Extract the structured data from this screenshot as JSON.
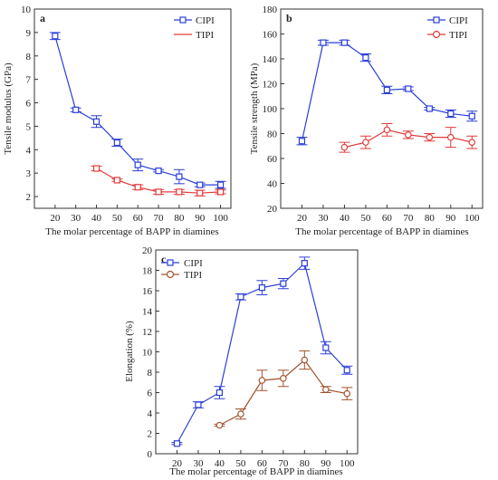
{
  "figure": {
    "panels": [
      {
        "panel_label": "a",
        "ylabel": "Tensile modulus (GPa)",
        "xlabel": "The molar percentage of BAPP in diamines",
        "yticks": [
          "2",
          "3",
          "4",
          "5",
          "6",
          "7",
          "8",
          "9",
          "10"
        ],
        "xticks": [
          "20",
          "30",
          "40",
          "50",
          "60",
          "70",
          "80",
          "90",
          "100"
        ],
        "legend": [
          "CIPI",
          "TIPI"
        ]
      },
      {
        "panel_label": "b",
        "ylabel": "Tensile strength (MPa)",
        "xlabel": "The molar percentage of BAPP in diamines",
        "yticks": [
          "20",
          "40",
          "60",
          "80",
          "100",
          "120",
          "140",
          "160",
          "180"
        ],
        "xticks": [
          "20",
          "30",
          "40",
          "50",
          "60",
          "70",
          "80",
          "90",
          "100"
        ],
        "legend": [
          "CIPI",
          "TIPI"
        ]
      },
      {
        "panel_label": "c",
        "ylabel": "Elongation (%)",
        "xlabel": "The molar percentage of BAPP in diamines",
        "yticks": [
          "0",
          "2",
          "4",
          "6",
          "8",
          "10",
          "12",
          "14",
          "16",
          "18",
          "20"
        ],
        "xticks": [
          "20",
          "30",
          "40",
          "50",
          "60",
          "70",
          "80",
          "90",
          "100"
        ],
        "legend": [
          "CIPI",
          "TIPI"
        ]
      }
    ]
  },
  "chart_data": [
    {
      "type": "line",
      "panel": "a",
      "xlabel": "The molar percentage of BAPP in diamines",
      "ylabel": "Tensile modulus (GPa)",
      "xlim": [
        10,
        105
      ],
      "ylim": [
        1.5,
        10
      ],
      "grid": false,
      "legend_position": "top-right",
      "series": [
        {
          "name": "CIPI",
          "color": "#2b3fd8",
          "marker": "square",
          "x": [
            20,
            30,
            40,
            50,
            60,
            70,
            80,
            90,
            100
          ],
          "y": [
            8.85,
            5.7,
            5.2,
            4.3,
            3.35,
            3.1,
            2.85,
            2.5,
            2.5
          ],
          "err": [
            0.15,
            0.08,
            0.25,
            0.15,
            0.25,
            0.05,
            0.3,
            0.08,
            0.15
          ]
        },
        {
          "name": "TIPI",
          "color": "#e23b3b",
          "marker": "square",
          "x": [
            40,
            50,
            60,
            70,
            80,
            90,
            100
          ],
          "y": [
            3.2,
            2.7,
            2.4,
            2.2,
            2.2,
            2.15,
            2.2
          ],
          "err": [
            0.1,
            0.05,
            0.1,
            0.1,
            0.1,
            0.12,
            0.08
          ]
        }
      ]
    },
    {
      "type": "line",
      "panel": "b",
      "xlabel": "The molar percentage of BAPP in diamines",
      "ylabel": "Tensile strength (MPa)",
      "xlim": [
        10,
        105
      ],
      "ylim": [
        20,
        180
      ],
      "grid": false,
      "legend_position": "top-right",
      "series": [
        {
          "name": "CIPI",
          "color": "#2b3fd8",
          "marker": "square",
          "x": [
            20,
            30,
            40,
            50,
            60,
            70,
            80,
            90,
            100
          ],
          "y": [
            74,
            153,
            153,
            141,
            115,
            116,
            100,
            96,
            94
          ],
          "err": [
            3,
            2,
            2,
            3,
            3,
            1.5,
            1,
            3,
            4
          ]
        },
        {
          "name": "TIPI",
          "color": "#e23b3b",
          "marker": "circle",
          "x": [
            40,
            50,
            60,
            70,
            80,
            90,
            100
          ],
          "y": [
            69,
            73,
            83,
            79,
            77,
            77,
            73
          ],
          "err": [
            4,
            5,
            5,
            3,
            3,
            8,
            5
          ]
        }
      ]
    },
    {
      "type": "line",
      "panel": "c",
      "xlabel": "The molar percentage of BAPP in diamines",
      "ylabel": "Elongation (%)",
      "xlim": [
        10,
        105
      ],
      "ylim": [
        0,
        20
      ],
      "grid": false,
      "legend_position": "top-left",
      "series": [
        {
          "name": "CIPI",
          "color": "#2b3fd8",
          "marker": "square",
          "x": [
            20,
            30,
            40,
            50,
            60,
            70,
            80,
            90,
            100
          ],
          "y": [
            1.0,
            4.8,
            6.0,
            15.4,
            16.3,
            16.7,
            18.7,
            10.4,
            8.2
          ],
          "err": [
            0.1,
            0.3,
            0.6,
            0.3,
            0.7,
            0.5,
            0.6,
            0.6,
            0.4
          ]
        },
        {
          "name": "TIPI",
          "color": "#a0522d",
          "marker": "circle",
          "x": [
            40,
            50,
            60,
            70,
            80,
            90,
            100
          ],
          "y": [
            2.8,
            3.9,
            7.2,
            7.4,
            9.2,
            6.3,
            5.9
          ],
          "err": [
            0.1,
            0.5,
            1.0,
            0.8,
            0.9,
            0.3,
            0.6
          ]
        }
      ]
    }
  ]
}
